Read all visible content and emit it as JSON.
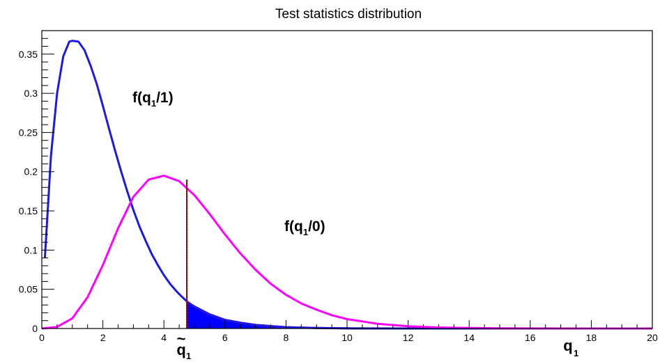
{
  "chart_data": {
    "type": "line",
    "title": "Test statistics distribution",
    "xlim": [
      0,
      20
    ],
    "ylim": [
      0,
      0.38
    ],
    "x_ticks": [
      0,
      2,
      4,
      6,
      8,
      10,
      12,
      14,
      16,
      18,
      20
    ],
    "y_ticks": [
      0,
      0.05,
      0.1,
      0.15,
      0.2,
      0.25,
      0.3,
      0.35
    ],
    "y_tick_labels": [
      "0",
      "0.05",
      "0.1",
      "0.15",
      "0.2",
      "0.25",
      "0.3",
      "0.35"
    ],
    "x_tick_labels": [
      "0",
      "2",
      "4",
      "6",
      "8",
      "10",
      "12",
      "14",
      "16",
      "18",
      "20"
    ],
    "xlabel": "q",
    "xlabel_subscript": "1",
    "series": [
      {
        "name": "f(q1/1)",
        "label_main": "f(q",
        "label_sub": "1",
        "label_tail": "/1)",
        "color": "#1a1ae6",
        "points": [
          [
            0.1,
            0.09
          ],
          [
            0.2,
            0.155
          ],
          [
            0.3,
            0.22
          ],
          [
            0.5,
            0.3
          ],
          [
            0.7,
            0.347
          ],
          [
            0.9,
            0.366
          ],
          [
            1.0,
            0.367
          ],
          [
            1.2,
            0.366
          ],
          [
            1.4,
            0.355
          ],
          [
            1.6,
            0.335
          ],
          [
            1.8,
            0.312
          ],
          [
            2.0,
            0.284
          ],
          [
            2.2,
            0.255
          ],
          [
            2.4,
            0.227
          ],
          [
            2.6,
            0.2
          ],
          [
            2.8,
            0.175
          ],
          [
            3.0,
            0.151
          ],
          [
            3.2,
            0.13
          ],
          [
            3.4,
            0.112
          ],
          [
            3.6,
            0.095
          ],
          [
            3.8,
            0.081
          ],
          [
            4.0,
            0.068
          ],
          [
            4.2,
            0.057
          ],
          [
            4.4,
            0.048
          ],
          [
            4.6,
            0.04
          ],
          [
            4.8,
            0.033
          ],
          [
            5.0,
            0.028
          ],
          [
            5.5,
            0.018
          ],
          [
            6.0,
            0.011
          ],
          [
            6.5,
            0.0075
          ],
          [
            7.0,
            0.0045
          ],
          [
            8.0,
            0.0017
          ],
          [
            9.0,
            0.0006
          ],
          [
            10.0,
            0.0002
          ],
          [
            12.0,
            0.0
          ],
          [
            20.0,
            0.0
          ]
        ]
      },
      {
        "name": "f(q1/0)",
        "label_main": "f(q",
        "label_sub": "1",
        "label_tail": "/0)",
        "color": "#ff00ff",
        "points": [
          [
            0.0,
            0.0
          ],
          [
            0.5,
            0.002
          ],
          [
            1.0,
            0.013
          ],
          [
            1.5,
            0.04
          ],
          [
            2.0,
            0.081
          ],
          [
            2.5,
            0.128
          ],
          [
            3.0,
            0.168
          ],
          [
            3.5,
            0.19
          ],
          [
            4.0,
            0.195
          ],
          [
            4.5,
            0.188
          ],
          [
            5.0,
            0.17
          ],
          [
            5.5,
            0.146
          ],
          [
            6.0,
            0.12
          ],
          [
            6.5,
            0.096
          ],
          [
            7.0,
            0.075
          ],
          [
            7.5,
            0.057
          ],
          [
            8.0,
            0.043
          ],
          [
            8.5,
            0.032
          ],
          [
            9.0,
            0.024
          ],
          [
            9.5,
            0.017
          ],
          [
            10.0,
            0.012
          ],
          [
            11.0,
            0.006
          ],
          [
            12.0,
            0.0028
          ],
          [
            13.0,
            0.0013
          ],
          [
            14.0,
            0.0006
          ],
          [
            15.0,
            0.0002
          ],
          [
            16.0,
            0.0001
          ],
          [
            18.0,
            0.0
          ],
          [
            20.0,
            0.0
          ]
        ]
      }
    ],
    "threshold": {
      "x": 4.75,
      "label_main": "q",
      "label_sub": "1",
      "label_accent": "~",
      "line_top_y": 0.19,
      "line_color": "#cc0000"
    },
    "shaded_tail": {
      "from_x": 4.75,
      "fill_color": "#0000ff",
      "edge_color": "#ff0000"
    },
    "grid": false,
    "legend": "none"
  }
}
